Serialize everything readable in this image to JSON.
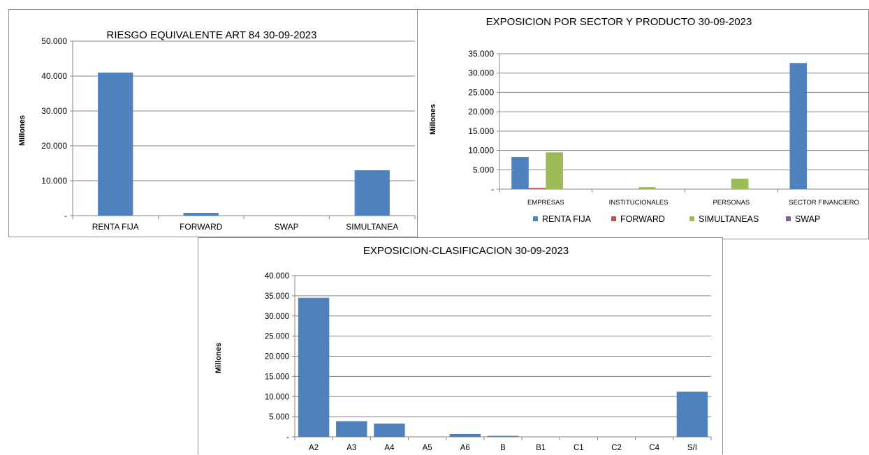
{
  "chart_data": [
    {
      "type": "bar",
      "title": "RIESGO EQUIVALENTE ART 84 30-09-2023",
      "ylabel": "Millones",
      "xlabel": "",
      "categories": [
        "RENTA FIJA",
        "FORWARD",
        "SWAP",
        "SIMULTANEA"
      ],
      "values": [
        41000,
        800,
        0,
        13000
      ],
      "ylim": [
        0,
        50000
      ],
      "yticks": [
        0,
        10000,
        20000,
        30000,
        40000,
        50000
      ],
      "ytick_labels": [
        "-",
        "10.000",
        "20.000",
        "30.000",
        "40.000",
        "50.000"
      ],
      "grid": true,
      "bar_color": "#4F81BD"
    },
    {
      "type": "bar",
      "title": "EXPOSICION POR SECTOR Y PRODUCTO 30-09-2023",
      "ylabel": "Millones",
      "xlabel": "",
      "categories": [
        "EMPRESAS",
        "INSTITUCIONALES",
        "PERSONAS",
        "SECTOR FINANCIERO"
      ],
      "series": [
        {
          "name": "RENTA FIJA",
          "color": "#4F81BD",
          "values": [
            8300,
            0,
            0,
            32600
          ]
        },
        {
          "name": "FORWARD",
          "color": "#C0504D",
          "values": [
            300,
            0,
            0,
            0
          ]
        },
        {
          "name": "SIMULTANEAS",
          "color": "#9BBB59",
          "values": [
            9500,
            500,
            2700,
            0
          ]
        },
        {
          "name": "SWAP",
          "color": "#8064A2",
          "values": [
            0,
            0,
            0,
            0
          ]
        }
      ],
      "ylim": [
        0,
        35000
      ],
      "yticks": [
        0,
        5000,
        10000,
        15000,
        20000,
        25000,
        30000,
        35000
      ],
      "ytick_labels": [
        "-",
        "5.000",
        "10.000",
        "15.000",
        "20.000",
        "25.000",
        "30.000",
        "35.000"
      ],
      "grid": true,
      "legend_position": "bottom"
    },
    {
      "type": "bar",
      "title": "EXPOSICION-CLASIFICACION 30-09-2023",
      "ylabel": "Millones",
      "xlabel": "",
      "categories": [
        "A2",
        "A3",
        "A4",
        "A5",
        "A6",
        "B",
        "B1",
        "C1",
        "C2",
        "C4",
        "S/I"
      ],
      "values": [
        34500,
        3900,
        3300,
        0,
        700,
        250,
        0,
        0,
        0,
        0,
        11200
      ],
      "ylim": [
        0,
        40000
      ],
      "yticks": [
        0,
        5000,
        10000,
        15000,
        20000,
        25000,
        30000,
        35000,
        40000
      ],
      "ytick_labels": [
        "-",
        "5.000",
        "10.000",
        "15.000",
        "20.000",
        "25.000",
        "30.000",
        "35.000",
        "40.000"
      ],
      "grid": true,
      "bar_color": "#4F81BD"
    }
  ]
}
